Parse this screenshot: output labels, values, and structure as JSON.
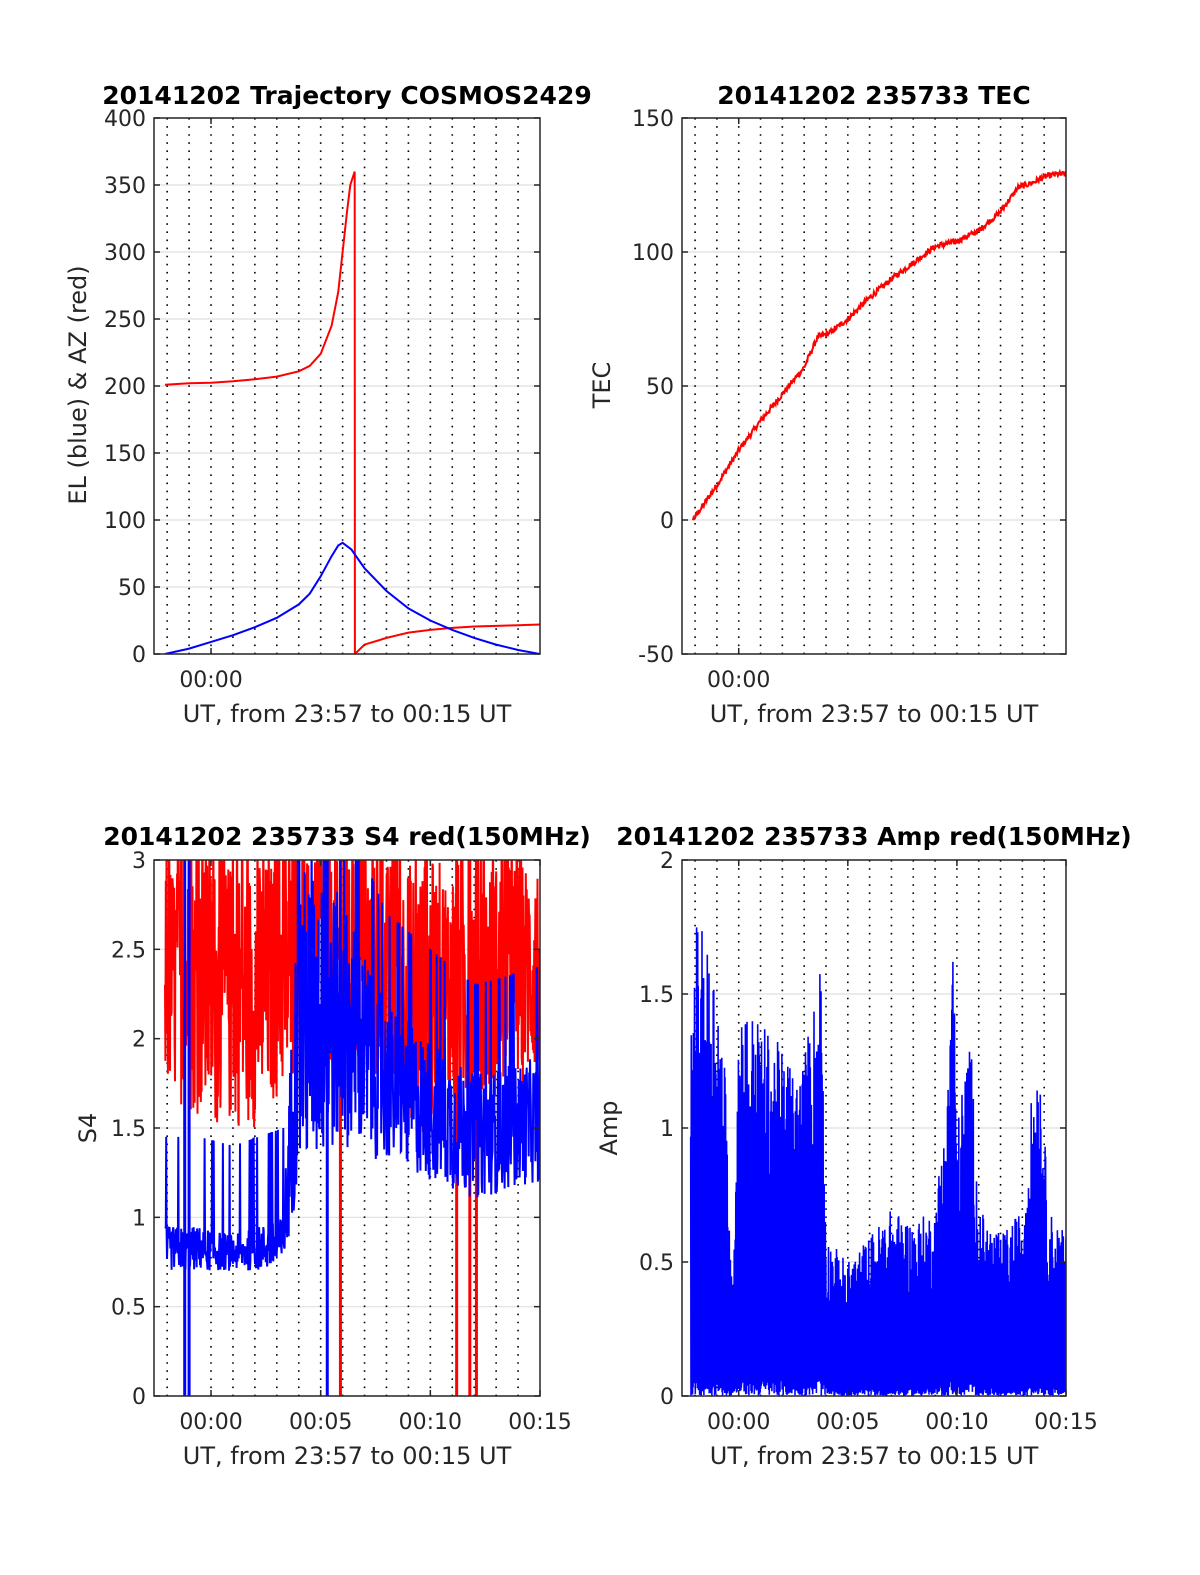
{
  "colors": {
    "red": "#ff0000",
    "blue": "#0000ff",
    "axis": "#262626",
    "grid": "#dfdfdf"
  },
  "chart_data": [
    {
      "type": "line",
      "title": "20141202 Trajectory COSMOS2429",
      "ylabel": "EL (blue) & AZ (red)",
      "xlabel": "UT, from 23:57 to 00:15 UT",
      "xlim": [
        -2.6,
        15
      ],
      "ylim": [
        0,
        400
      ],
      "yticks": [
        0,
        50,
        100,
        150,
        200,
        250,
        300,
        350,
        400
      ],
      "xticks": [
        {
          "x": 0,
          "label": "00:00"
        }
      ],
      "minor_grid_x": [
        -2,
        -1,
        0,
        1,
        2,
        3,
        4,
        5,
        6,
        7,
        8,
        9,
        10,
        11,
        12,
        13,
        14
      ],
      "series": [
        {
          "color": "red",
          "points": [
            [
              -2.1,
              201
            ],
            [
              -1,
              202
            ],
            [
              0,
              202.5
            ],
            [
              1,
              203.5
            ],
            [
              2,
              205
            ],
            [
              3,
              207
            ],
            [
              4,
              211
            ],
            [
              4.5,
              215
            ],
            [
              5,
              224
            ],
            [
              5.5,
              245
            ],
            [
              5.8,
              270
            ],
            [
              6,
              300
            ],
            [
              6.2,
              330
            ],
            [
              6.35,
              350
            ],
            [
              6.55,
              360
            ],
            [
              6.56,
              0
            ],
            [
              7,
              7
            ],
            [
              8,
              12
            ],
            [
              9,
              16
            ],
            [
              10,
              18
            ],
            [
              11,
              19.5
            ],
            [
              12,
              20.5
            ],
            [
              13,
              21
            ],
            [
              14,
              21.5
            ],
            [
              15,
              22
            ]
          ]
        },
        {
          "color": "blue",
          "points": [
            [
              -2.1,
              0
            ],
            [
              -1,
              4
            ],
            [
              0,
              9
            ],
            [
              1,
              14
            ],
            [
              2,
              20
            ],
            [
              3,
              27
            ],
            [
              4,
              37
            ],
            [
              4.5,
              45
            ],
            [
              5,
              58
            ],
            [
              5.5,
              73
            ],
            [
              5.8,
              81
            ],
            [
              6,
              83
            ],
            [
              6.4,
              78
            ],
            [
              7,
              64
            ],
            [
              8,
              47
            ],
            [
              9,
              34
            ],
            [
              10,
              25
            ],
            [
              11,
              18
            ],
            [
              12,
              12
            ],
            [
              13,
              7
            ],
            [
              14,
              3
            ],
            [
              15,
              0
            ]
          ]
        }
      ]
    },
    {
      "type": "line",
      "title": "20141202 235733 TEC",
      "ylabel": "TEC",
      "xlabel": "UT, from 23:57 to 00:15 UT",
      "xlim": [
        -2.6,
        15
      ],
      "ylim": [
        -50,
        150
      ],
      "yticks": [
        -50,
        0,
        50,
        100,
        150
      ],
      "xticks": [
        {
          "x": 0,
          "label": "00:00"
        }
      ],
      "minor_grid_x": [
        -2,
        -1,
        0,
        1,
        2,
        3,
        4,
        5,
        6,
        7,
        8,
        9,
        10,
        11,
        12,
        13,
        14
      ],
      "series": [
        {
          "color": "red",
          "points": [
            [
              -2.1,
              0
            ],
            [
              -1,
              13
            ],
            [
              0,
              26
            ],
            [
              1,
              37
            ],
            [
              2,
              47
            ],
            [
              3,
              57
            ],
            [
              3.6,
              68
            ],
            [
              4.2,
              70
            ],
            [
              5,
              75
            ],
            [
              6,
              83
            ],
            [
              7,
              90
            ],
            [
              8,
              96
            ],
            [
              9,
              102
            ],
            [
              10,
              104
            ],
            [
              11,
              108
            ],
            [
              12,
              115
            ],
            [
              12.8,
              124
            ],
            [
              13.5,
              126
            ],
            [
              14,
              128
            ],
            [
              14.5,
              129
            ],
            [
              15,
              129
            ]
          ]
        }
      ]
    },
    {
      "type": "line",
      "title": "20141202 235733 S4 red(150MHz)",
      "ylabel": "S4",
      "xlabel": "UT, from 23:57 to 00:15 UT",
      "xlim": [
        -2.6,
        15
      ],
      "ylim": [
        0,
        3
      ],
      "yticks": [
        0,
        0.5,
        1,
        1.5,
        2,
        2.5,
        3
      ],
      "xticks": [
        {
          "x": 0,
          "label": "00:00"
        },
        {
          "x": 5,
          "label": "00:05"
        },
        {
          "x": 10,
          "label": "00:10"
        },
        {
          "x": 15,
          "label": "00:15"
        }
      ],
      "minor_grid_x": [
        -2,
        -1,
        0,
        1,
        2,
        3,
        4,
        5,
        6,
        7,
        8,
        9,
        10,
        11,
        12,
        13,
        14
      ],
      "series": [
        {
          "color": "red",
          "style": "noise",
          "band": [
            [
              -2.1,
              1.7,
              3.0
            ],
            [
              0,
              1.5,
              3.0
            ],
            [
              2,
              1.5,
              3.0
            ],
            [
              4,
              1.8,
              3.0
            ],
            [
              6,
              1.8,
              3.0
            ],
            [
              8,
              1.7,
              3.0
            ],
            [
              10,
              1.4,
              3.0
            ],
            [
              12,
              1.6,
              3.0
            ],
            [
              15,
              1.8,
              3.0
            ]
          ],
          "drops": [
            5.9,
            11.2,
            11.8,
            12.1
          ]
        },
        {
          "color": "blue",
          "style": "noise",
          "band": [
            [
              -2.1,
              0.7,
              0.95
            ],
            [
              -0.5,
              0.7,
              0.95
            ],
            [
              1,
              0.7,
              0.9
            ],
            [
              3.3,
              0.7,
              1.0
            ],
            [
              4,
              1.2,
              3.0
            ],
            [
              6,
              1.4,
              2.8
            ],
            [
              8,
              1.3,
              2.2
            ],
            [
              10,
              1.2,
              2.0
            ],
            [
              12,
              1.1,
              1.8
            ],
            [
              15,
              1.2,
              1.9
            ]
          ],
          "drops": [
            -1.2,
            -1.0,
            5.3
          ]
        }
      ]
    },
    {
      "type": "line",
      "title": "20141202 235733 Amp red(150MHz)",
      "ylabel": "Amp",
      "xlabel": "UT, from 23:57 to 00:15 UT",
      "xlim": [
        -2.6,
        15
      ],
      "ylim": [
        0,
        2
      ],
      "yticks": [
        0,
        0.5,
        1,
        1.5,
        2
      ],
      "xticks": [
        {
          "x": 0,
          "label": "00:00"
        },
        {
          "x": 5,
          "label": "00:05"
        },
        {
          "x": 10,
          "label": "00:10"
        },
        {
          "x": 15,
          "label": "00:15"
        }
      ],
      "minor_grid_x": [
        -2,
        -1,
        0,
        1,
        2,
        3,
        4,
        5,
        6,
        7,
        8,
        9,
        10,
        11,
        12,
        13,
        14
      ],
      "series": [
        {
          "color": "blue",
          "style": "envelope",
          "points": [
            [
              -2.2,
              1.3
            ],
            [
              -2,
              1.8
            ],
            [
              -1.5,
              1.7
            ],
            [
              -1,
              1.6
            ],
            [
              -0.6,
              1.2
            ],
            [
              -0.3,
              0.4
            ],
            [
              0,
              1.5
            ],
            [
              1,
              1.4
            ],
            [
              2,
              1.3
            ],
            [
              2.8,
              1.2
            ],
            [
              3.5,
              1.5
            ],
            [
              3.8,
              1.7
            ],
            [
              4,
              0.6
            ],
            [
              5,
              0.5
            ],
            [
              6,
              0.6
            ],
            [
              7,
              0.7
            ],
            [
              8,
              0.65
            ],
            [
              9,
              0.7
            ],
            [
              9.6,
              1.2
            ],
            [
              9.8,
              1.9
            ],
            [
              10,
              1.0
            ],
            [
              10.6,
              1.4
            ],
            [
              11,
              0.7
            ],
            [
              12,
              0.6
            ],
            [
              13,
              0.7
            ],
            [
              13.5,
              1.2
            ],
            [
              13.8,
              1.3
            ],
            [
              14.2,
              0.7
            ],
            [
              15,
              0.6
            ]
          ]
        }
      ]
    }
  ]
}
